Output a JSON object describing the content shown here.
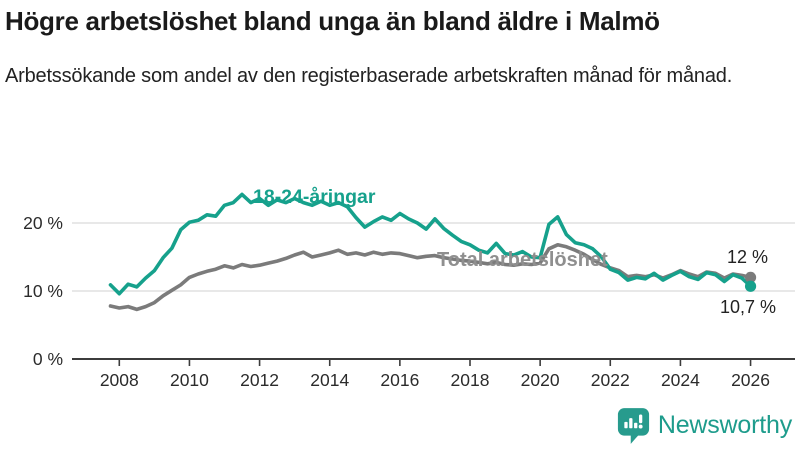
{
  "header": {
    "title": "Högre arbetslöshet bland unga än bland äldre i Malmö",
    "subtitle": "Arbetssökande som andel av den registerbaserade arbetskraften månad för månad."
  },
  "footer": {
    "brand": "Newsworthy",
    "brand_color": "#1e9c8c",
    "logo_icon": "bar-chart-exclamation-bubble-icon"
  },
  "colors": {
    "accent_teal": "#16a18c",
    "line_gray": "#7b7b7b",
    "grid": "#d9d9d9",
    "axis": "#3c3c3c",
    "text_dark": "#222222"
  },
  "chart_data": {
    "type": "line",
    "title": "Högre arbetslöshet bland unga än bland äldre i Malmö",
    "subtitle": "Arbetssökande som andel av den registerbaserade arbetskraften månad för månad.",
    "xlabel": "",
    "ylabel": "",
    "grid": "horizontal-only",
    "legend_position": "inline-labels",
    "xlim": [
      2007.6,
      2026.4
    ],
    "ylim": [
      0,
      26
    ],
    "x_ticks": [
      2008,
      2010,
      2012,
      2014,
      2016,
      2018,
      2020,
      2022,
      2024,
      2026
    ],
    "y_ticks": [
      {
        "value": 20,
        "label": "20 %"
      },
      {
        "value": 10,
        "label": "10 %"
      },
      {
        "value": 0,
        "label": "0 %"
      }
    ],
    "x": [
      2007.75,
      2008.0,
      2008.25,
      2008.5,
      2008.75,
      2009.0,
      2009.25,
      2009.5,
      2009.75,
      2010.0,
      2010.25,
      2010.5,
      2010.75,
      2011.0,
      2011.25,
      2011.5,
      2011.75,
      2012.0,
      2012.25,
      2012.5,
      2012.75,
      2013.0,
      2013.25,
      2013.5,
      2013.75,
      2014.0,
      2014.25,
      2014.5,
      2014.75,
      2015.0,
      2015.25,
      2015.5,
      2015.75,
      2016.0,
      2016.25,
      2016.5,
      2016.75,
      2017.0,
      2017.25,
      2017.5,
      2017.75,
      2018.0,
      2018.25,
      2018.5,
      2018.75,
      2019.0,
      2019.25,
      2019.5,
      2019.75,
      2020.0,
      2020.25,
      2020.5,
      2020.75,
      2021.0,
      2021.25,
      2021.5,
      2021.75,
      2022.0,
      2022.25,
      2022.5,
      2022.75,
      2023.0,
      2023.25,
      2023.5,
      2023.75,
      2024.0,
      2024.25,
      2024.5,
      2024.75,
      2025.0,
      2025.25,
      2025.5,
      2025.75,
      2026.0
    ],
    "series": [
      {
        "name": "Total arbetslöshet",
        "color": "#7b7b7b",
        "label_color": "#8f8f8f",
        "end_label": "12 %",
        "end_value": 12.0,
        "values": [
          7.8,
          7.5,
          7.7,
          7.3,
          7.7,
          8.3,
          9.3,
          10.1,
          10.9,
          12.0,
          12.5,
          12.9,
          13.2,
          13.7,
          13.4,
          13.9,
          13.6,
          13.8,
          14.1,
          14.4,
          14.8,
          15.3,
          15.7,
          15.0,
          15.3,
          15.6,
          16.0,
          15.4,
          15.6,
          15.3,
          15.7,
          15.4,
          15.6,
          15.5,
          15.2,
          14.9,
          15.1,
          15.2,
          14.9,
          14.7,
          14.5,
          14.4,
          14.2,
          14.0,
          14.2,
          13.9,
          13.8,
          14.0,
          13.9,
          14.1,
          16.2,
          16.8,
          16.5,
          16.0,
          15.4,
          14.6,
          13.9,
          13.4,
          13.0,
          12.1,
          12.3,
          12.1,
          12.4,
          11.9,
          12.4,
          13.0,
          12.5,
          12.1,
          12.8,
          12.6,
          11.9,
          12.5,
          12.3,
          12.0
        ]
      },
      {
        "name": "18-24-åringar",
        "color": "#16a18c",
        "label_color": "#16a18c",
        "end_label": "10,7 %",
        "end_value": 10.7,
        "values": [
          10.9,
          9.6,
          11.0,
          10.6,
          11.9,
          13.0,
          14.9,
          16.3,
          19.0,
          20.1,
          20.4,
          21.2,
          21.0,
          22.6,
          23.0,
          24.2,
          23.0,
          23.6,
          22.6,
          23.4,
          23.0,
          23.6,
          23.0,
          22.6,
          23.2,
          22.6,
          23.0,
          22.4,
          20.8,
          19.4,
          20.2,
          20.9,
          20.4,
          21.4,
          20.6,
          20.0,
          19.1,
          20.6,
          19.2,
          18.2,
          17.3,
          16.8,
          16.0,
          15.6,
          17.0,
          15.5,
          15.3,
          15.8,
          15.0,
          14.9,
          19.8,
          20.9,
          18.3,
          17.1,
          16.8,
          16.2,
          15.0,
          13.2,
          12.7,
          11.6,
          12.0,
          11.8,
          12.6,
          11.6,
          12.3,
          12.9,
          12.1,
          11.7,
          12.7,
          12.4,
          11.4,
          12.4,
          11.9,
          10.7
        ]
      }
    ]
  }
}
